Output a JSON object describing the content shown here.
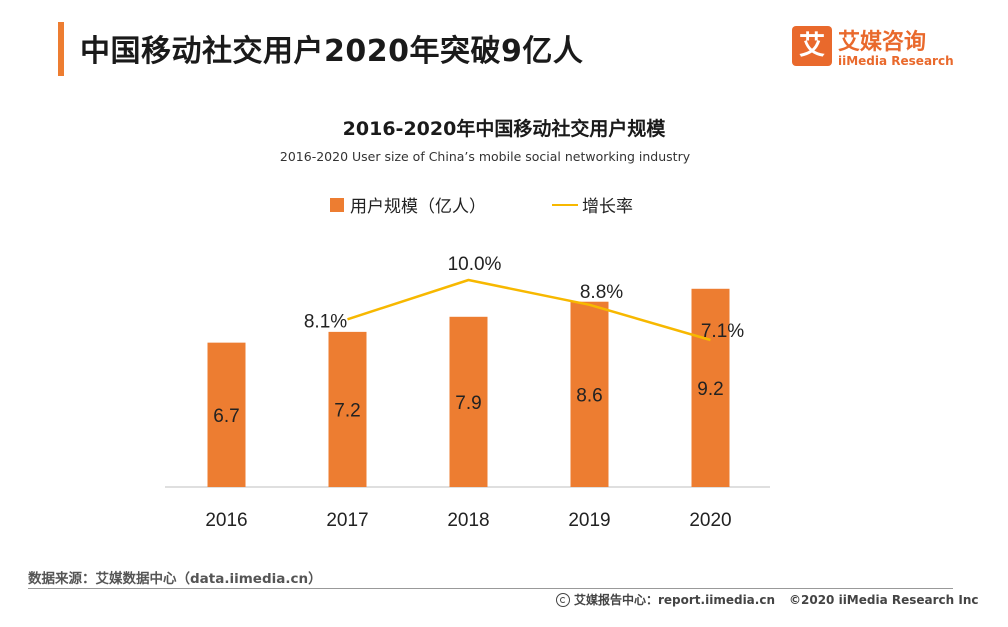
{
  "header": {
    "title": "中国移动社交用户2020年突破9亿人",
    "logo_mark": "艾",
    "logo_cn": "艾媒咨询",
    "logo_en": "iiMedia Research"
  },
  "colors": {
    "accent": "#ed7d31",
    "line": "#f7b800",
    "logo": "#e9692c"
  },
  "chart_data": {
    "type": "bar",
    "title": "2016-2020年中国移动社交用户规模",
    "subtitle": "2016-2020 User size of China’s mobile social networking industry",
    "categories": [
      "2016",
      "2017",
      "2018",
      "2019",
      "2020"
    ],
    "ylim": [
      0,
      11
    ],
    "series": [
      {
        "name": "用户规模（亿人）",
        "type": "bar",
        "values": [
          6.7,
          7.2,
          7.9,
          8.6,
          9.2
        ],
        "labels": [
          "6.7",
          "7.2",
          "7.9",
          "8.6",
          "9.2"
        ]
      },
      {
        "name": "增长率",
        "type": "line",
        "values": [
          null,
          8.1,
          10.0,
          8.8,
          7.1
        ],
        "labels": [
          "",
          "8.1%",
          "10.0%",
          "8.8%",
          "7.1%"
        ],
        "ylim": [
          5,
          11
        ]
      }
    ],
    "legend": [
      "用户规模（亿人）",
      "增长率"
    ],
    "xlabel": "",
    "ylabel": ""
  },
  "footer": {
    "source": "数据来源：艾媒数据中心（data.iimedia.cn）",
    "report_center": "艾媒报告中心：report.iimedia.cn",
    "copyright": "©2020  iiMedia Research  Inc"
  }
}
